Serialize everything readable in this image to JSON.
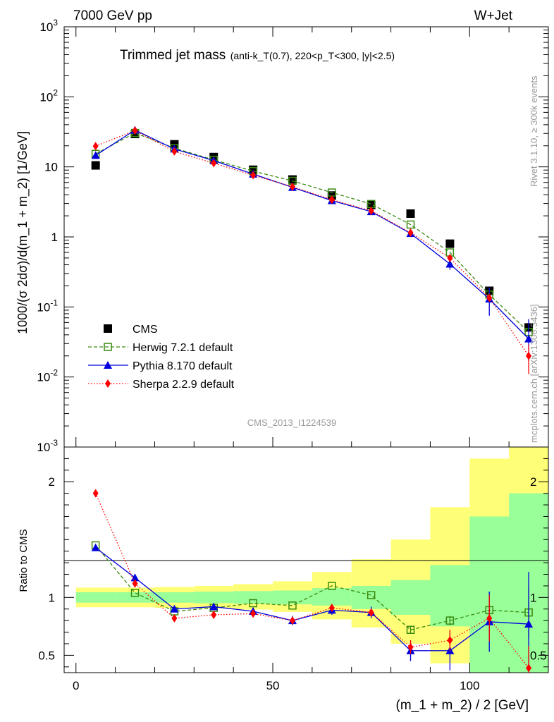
{
  "header": {
    "energy": "7000 GeV pp",
    "process": "W+Jet",
    "plot_title": "Trimmed jet mass",
    "plot_subtitle": "(anti-k_T(0.7), 220<p_T<300, |y|<2.5)",
    "analysis_id": "CMS_2013_I1224539",
    "rivet_label": "Rivet 3.1.10, ≥ 300k events",
    "mcplots_label": "mcplots.cern.ch [arXiv:1306.3436]"
  },
  "chart_data": [
    {
      "type": "scatter",
      "panel": "main",
      "title": "Trimmed jet mass (anti-k_T(0.7), 220<p_T<300, |y|<2.5)",
      "ylabel": "1000/(σ 2dσ)/d(m_1 + m_2) [1/GeV]",
      "yscale": "log",
      "ylim": [
        0.001,
        1000
      ],
      "xlim": [
        -3,
        120
      ],
      "y_tick_labels": [
        "10^-3",
        "10^-2",
        "10^-1",
        "1",
        "10",
        "10^2",
        "10^3"
      ],
      "x": [
        5,
        15,
        25,
        35,
        45,
        55,
        65,
        75,
        85,
        95,
        105,
        115
      ],
      "series": [
        {
          "name": "CMS",
          "color": "#000000",
          "marker": "square",
          "line": "none",
          "values": [
            10.5,
            29.5,
            21,
            13.8,
            9.1,
            6.6,
            3.9,
            2.85,
            2.15,
            0.8,
            0.17,
            0.051
          ]
        },
        {
          "name": "Herwig 7.2.1 default",
          "color": "#3a8a0f",
          "marker": "open-square",
          "line": "dashed",
          "values": [
            15.3,
            30.5,
            18.5,
            12.6,
            8.7,
            6.3,
            4.3,
            2.95,
            1.5,
            0.6,
            0.15,
            0.044
          ]
        },
        {
          "name": "Pythia 8.170 default",
          "color": "#0000dd",
          "marker": "triangle",
          "line": "solid",
          "values": [
            14.6,
            33.5,
            18.0,
            12.3,
            7.9,
            5.1,
            3.3,
            2.3,
            1.12,
            0.41,
            0.13,
            0.035
          ],
          "err_lo": [
            0,
            0,
            0,
            0,
            0,
            0,
            0,
            0,
            0.1,
            0.07,
            0.055,
            0.018
          ],
          "err_hi": [
            0,
            0,
            0,
            0,
            0,
            0,
            0,
            0,
            0.1,
            0.07,
            0.06,
            0.032
          ]
        },
        {
          "name": "Sherpa 2.2.9 default",
          "color": "#ff0000",
          "marker": "diamond",
          "line": "dotted",
          "values": [
            19.8,
            33.0,
            16.6,
            11.3,
            7.6,
            5.2,
            3.4,
            2.35,
            1.15,
            0.5,
            0.135,
            0.02
          ],
          "err_lo": [
            0,
            0,
            0,
            0,
            0,
            0,
            0,
            0,
            0,
            0,
            0,
            0.009
          ],
          "err_hi": [
            0,
            0,
            0,
            0,
            0,
            0,
            0,
            0,
            0,
            0,
            0,
            0.009
          ]
        }
      ]
    },
    {
      "type": "scatter",
      "panel": "ratio",
      "ylabel": "Ratio to CMS",
      "xlabel": "(m_1 + m_2) / 2 [GeV]",
      "ylim": [
        0.35,
        2.3
      ],
      "xlim": [
        -3,
        120
      ],
      "x_ticks": [
        0,
        50,
        100
      ],
      "x_tick_labels": [
        "0",
        "50",
        "100"
      ],
      "y_ticks": [
        0.5,
        1,
        2
      ],
      "y_tick_labels": [
        "0.5",
        "1",
        "2"
      ],
      "x": [
        5,
        15,
        25,
        35,
        45,
        55,
        65,
        75,
        85,
        95,
        105,
        115
      ],
      "bands": {
        "bins": [
          [
            0,
            10
          ],
          [
            10,
            20
          ],
          [
            20,
            30
          ],
          [
            30,
            40
          ],
          [
            40,
            50
          ],
          [
            50,
            60
          ],
          [
            60,
            70
          ],
          [
            70,
            80
          ],
          [
            80,
            90
          ],
          [
            90,
            100
          ],
          [
            100,
            110
          ],
          [
            110,
            120
          ]
        ],
        "inner": {
          "name": "stat",
          "color": "#99ff99",
          "lo": [
            0.955,
            0.955,
            0.955,
            0.95,
            0.945,
            0.94,
            0.93,
            0.9,
            0.85,
            0.75,
            0.35,
            0.3
          ],
          "hi": [
            1.045,
            1.045,
            1.045,
            1.05,
            1.055,
            1.06,
            1.08,
            1.1,
            1.15,
            1.28,
            1.7,
            1.9
          ]
        },
        "outer": {
          "name": "total",
          "color": "#ffff77",
          "lo": [
            0.915,
            0.915,
            0.91,
            0.905,
            0.895,
            0.875,
            0.81,
            0.74,
            0.6,
            0.43,
            0.3,
            0.3
          ],
          "hi": [
            1.085,
            1.085,
            1.09,
            1.1,
            1.115,
            1.14,
            1.22,
            1.33,
            1.5,
            1.78,
            2.2,
            2.3
          ]
        }
      },
      "series": [
        {
          "name": "Herwig 7.2.1 default",
          "color": "#3a8a0f",
          "marker": "open-square",
          "line": "dashed",
          "values": [
            1.45,
            1.04,
            0.88,
            0.91,
            0.95,
            0.93,
            1.1,
            1.02,
            0.72,
            0.8,
            0.89,
            0.87
          ],
          "err": [
            0,
            0,
            0,
            0,
            0,
            0,
            0,
            0,
            0.03,
            0.04,
            0.0,
            0.22
          ]
        },
        {
          "name": "Pythia 8.170 default",
          "color": "#0000dd",
          "marker": "triangle",
          "line": "solid",
          "values": [
            1.43,
            1.17,
            0.9,
            0.92,
            0.88,
            0.8,
            0.89,
            0.87,
            0.54,
            0.54,
            0.79,
            0.77
          ],
          "err": [
            0,
            0,
            0,
            0.03,
            0.03,
            0.04,
            0.04,
            0.05,
            0.09,
            0.17,
            0.26,
            0.45
          ]
        },
        {
          "name": "Sherpa 2.2.9 default",
          "color": "#ff0000",
          "marker": "diamond",
          "line": "dotted",
          "values": [
            1.9,
            1.12,
            0.82,
            0.85,
            0.86,
            0.8,
            0.91,
            0.87,
            0.57,
            0.63,
            0.82,
            0.39
          ],
          "err": [
            0,
            0,
            0,
            0,
            0,
            0,
            0,
            0,
            0.06,
            0.09,
            0.2,
            0.19
          ]
        }
      ]
    }
  ]
}
